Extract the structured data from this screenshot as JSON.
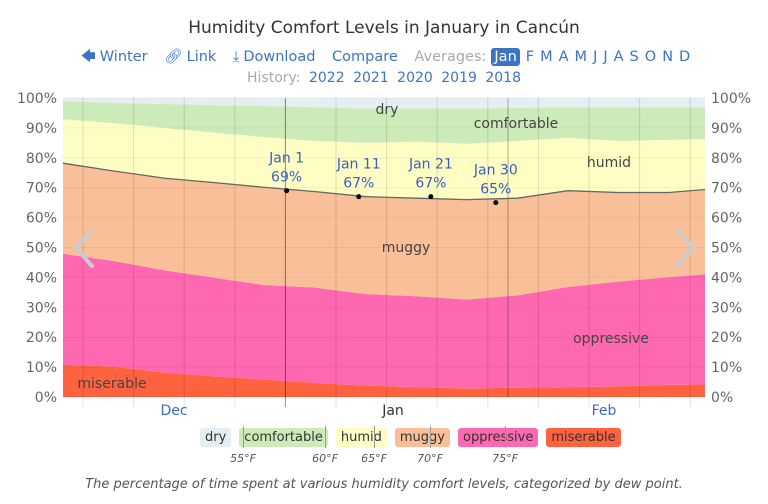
{
  "header": {
    "title": "Humidity Comfort Levels in January in Cancún",
    "nav": {
      "winter": "Winter",
      "link": "Link",
      "download": "Download",
      "compare": "Compare",
      "averages_label": "Averages:",
      "months": [
        "Jan",
        "F",
        "M",
        "A",
        "M",
        "J",
        "J",
        "A",
        "S",
        "O",
        "N",
        "D"
      ],
      "selected_month": "Jan"
    },
    "history": {
      "label": "History:",
      "years": [
        "2022",
        "2021",
        "2020",
        "2019",
        "2018"
      ]
    }
  },
  "chart_data": {
    "type": "area",
    "stacked": true,
    "title": "Humidity Comfort Levels in January in Cancún",
    "x": [
      "Dec 1",
      "Dec 8",
      "Dec 15",
      "Dec 22",
      "Dec 29",
      "Jan 5",
      "Jan 12",
      "Jan 19",
      "Jan 26",
      "Feb 2",
      "Feb 9",
      "Feb 16",
      "Feb 23",
      "Feb 28"
    ],
    "xlim": [
      "Dec 1",
      "Feb 28"
    ],
    "x_ticks": [
      "Dec",
      "Jan",
      "Feb"
    ],
    "ylim": [
      0,
      100
    ],
    "y_ticks": [
      "0%",
      "10%",
      "20%",
      "30%",
      "40%",
      "50%",
      "60%",
      "70%",
      "80%",
      "90%",
      "100%"
    ],
    "grid": true,
    "series": [
      {
        "name": "miserable",
        "color": "#fe623f",
        "values": [
          10.8,
          10.2,
          8.2,
          6.9,
          5.8,
          4.7,
          3.8,
          3.3,
          2.9,
          3.1,
          3.3,
          3.5,
          4.1,
          4.2
        ]
      },
      {
        "name": "oppressive",
        "color": "#fe68b1",
        "values": [
          37.1,
          35.3,
          34.2,
          33.0,
          31.6,
          31.9,
          30.6,
          30.4,
          29.7,
          30.9,
          33.5,
          35.1,
          36.0,
          36.8
        ]
      },
      {
        "name": "muggy",
        "color": "#f9bf98",
        "values": [
          30.3,
          30.1,
          30.8,
          31.8,
          32.7,
          32.1,
          32.6,
          32.8,
          33.4,
          32.5,
          32.2,
          29.8,
          28.3,
          28.4
        ]
      },
      {
        "name": "humid",
        "color": "#fefec4",
        "values": [
          14.7,
          16.0,
          16.8,
          16.7,
          16.8,
          16.9,
          18.0,
          18.9,
          18.7,
          19.1,
          17.7,
          17.2,
          17.6,
          16.9
        ]
      },
      {
        "name": "comfortable",
        "color": "#cdebb9",
        "values": [
          6.0,
          6.8,
          8.0,
          9.2,
          10.4,
          11.3,
          11.5,
          11.1,
          11.8,
          11.1,
          10.2,
          11.3,
          10.9,
          10.6
        ]
      },
      {
        "name": "dry",
        "color": "#e5eef1",
        "values": [
          1.1,
          1.6,
          2.0,
          2.4,
          2.7,
          3.1,
          3.5,
          3.5,
          3.5,
          3.3,
          3.1,
          3.1,
          3.1,
          3.1
        ]
      }
    ],
    "annotations": [
      {
        "date": "Jan 1",
        "label": "Jan 1",
        "value_label": "69%",
        "value": 69
      },
      {
        "date": "Jan 11",
        "label": "Jan 11",
        "value_label": "67%",
        "value": 67
      },
      {
        "date": "Jan 21",
        "label": "Jan 21",
        "value_label": "67%",
        "value": 67
      },
      {
        "date": "Jan 30",
        "label": "Jan 30",
        "value_label": "65%",
        "value": 65
      }
    ]
  },
  "legend": {
    "items": [
      {
        "label": "dry",
        "color": "#e5eef1"
      },
      {
        "label": "comfortable",
        "color": "#cdebb9"
      },
      {
        "label": "humid",
        "color": "#fefec4"
      },
      {
        "label": "muggy",
        "color": "#f9bf98"
      },
      {
        "label": "oppressive",
        "color": "#fe68b1"
      },
      {
        "label": "miserable",
        "color": "#fe623f"
      }
    ],
    "thresholds": [
      "55°F",
      "60°F",
      "65°F",
      "70°F",
      "75°F"
    ]
  },
  "caption": "The percentage of time spent at various humidity comfort levels, categorized by dew point."
}
